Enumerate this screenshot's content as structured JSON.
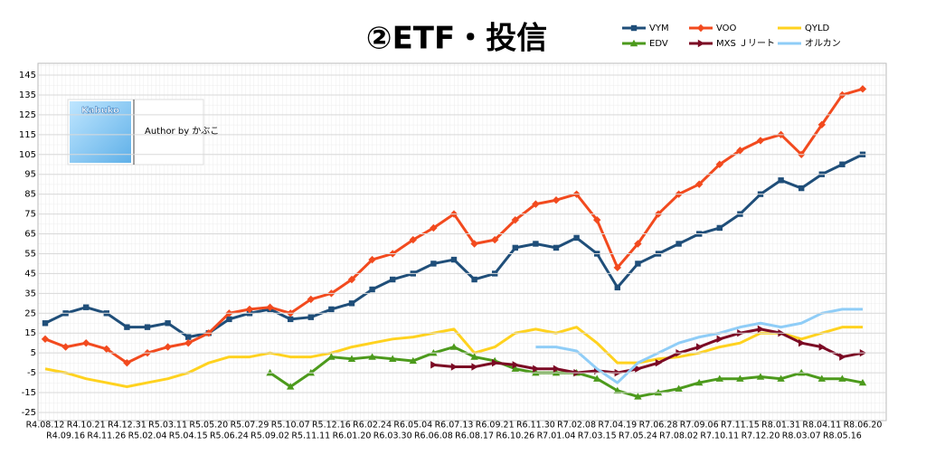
{
  "chart_data": {
    "type": "line",
    "title": "②ETF・投信",
    "annotations": [
      "Kabuko",
      "Author by かぶこ"
    ],
    "categories": [
      "R4.08.12",
      "R4.09.16",
      "R4.10.21",
      "R4.11.26",
      "R4.12.31",
      "R5.02.04",
      "R5.03.11",
      "R5.04.15",
      "R5.05.20",
      "R5.06.24",
      "R5.07.29",
      "R5.09.02",
      "R5.10.07",
      "R5.11.11",
      "R5.12.16",
      "R6.01.20",
      "R6.02.24",
      "R6.03.30",
      "R6.05.04",
      "R6.06.08",
      "R6.07.13",
      "R6.08.17",
      "R6.09.21",
      "R6.10.26",
      "R6.11.30",
      "R7.01.04",
      "R7.02.08",
      "R7.03.15",
      "R7.04.19",
      "R7.05.24",
      "R7.06.28",
      "R7.08.02",
      "R7.09.06",
      "R7.10.11",
      "R7.11.15",
      "R7.12.20",
      "R8.01.31",
      "R8.03.07",
      "R8.04.11",
      "R8.05.16",
      "R8.06.20"
    ],
    "series": [
      {
        "name": "VYM",
        "color": "#1f4e79",
        "marker": "square",
        "values": [
          20,
          25,
          28,
          25,
          18,
          18,
          20,
          13,
          15,
          22,
          25,
          27,
          22,
          23,
          27,
          30,
          37,
          42,
          45,
          50,
          52,
          42,
          45,
          58,
          60,
          58,
          63,
          55,
          38,
          50,
          55,
          60,
          65,
          68,
          75,
          85,
          92,
          88,
          95,
          100,
          105
        ]
      },
      {
        "name": "VOO",
        "color": "#f24a1e",
        "marker": "diamond",
        "values": [
          12,
          8,
          10,
          7,
          0,
          5,
          8,
          10,
          15,
          25,
          27,
          28,
          25,
          32,
          35,
          42,
          52,
          55,
          62,
          68,
          75,
          60,
          62,
          72,
          80,
          82,
          85,
          72,
          48,
          60,
          75,
          85,
          90,
          100,
          107,
          112,
          115,
          105,
          120,
          135,
          138
        ]
      },
      {
        "name": "QYLD",
        "color": "#ffd21f",
        "marker": "none",
        "values": [
          -3,
          -5,
          -8,
          -10,
          -12,
          -10,
          -8,
          -5,
          0,
          3,
          3,
          5,
          3,
          3,
          5,
          8,
          10,
          12,
          13,
          15,
          17,
          5,
          8,
          15,
          17,
          15,
          18,
          10,
          0,
          0,
          2,
          3,
          5,
          8,
          10,
          15,
          15,
          12,
          15,
          18,
          18
        ]
      },
      {
        "name": "EDV",
        "color": "#4c9a1c",
        "marker": "triangle",
        "values": [
          null,
          null,
          null,
          null,
          null,
          null,
          null,
          null,
          null,
          null,
          null,
          -5,
          -12,
          -5,
          3,
          2,
          3,
          2,
          1,
          5,
          8,
          3,
          1,
          -3,
          -5,
          -5,
          -5,
          -8,
          -14,
          -17,
          -15,
          -13,
          -10,
          -8,
          -8,
          -7,
          -8,
          -5,
          -8,
          -8,
          -10
        ]
      },
      {
        "name": "MXS Ｊリート",
        "color": "#7b0a24",
        "marker": "triangle-right",
        "values": [
          null,
          null,
          null,
          null,
          null,
          null,
          null,
          null,
          null,
          null,
          null,
          null,
          null,
          null,
          null,
          null,
          null,
          null,
          null,
          -1,
          -2,
          -2,
          0,
          -1,
          -3,
          -3,
          -5,
          -4,
          -5,
          -3,
          0,
          5,
          8,
          12,
          15,
          17,
          15,
          10,
          8,
          3,
          5
        ]
      },
      {
        "name": "オルカン",
        "color": "#8fcdf7",
        "marker": "none",
        "values": [
          null,
          null,
          null,
          null,
          null,
          null,
          null,
          null,
          null,
          null,
          null,
          null,
          null,
          null,
          null,
          null,
          null,
          null,
          null,
          null,
          null,
          null,
          null,
          null,
          8,
          8,
          6,
          -3,
          -10,
          0,
          5,
          10,
          13,
          15,
          18,
          20,
          18,
          20,
          25,
          27,
          27
        ]
      }
    ],
    "ylim": [
      -25,
      145
    ],
    "yticks": [
      -25,
      -15,
      -5,
      5,
      15,
      25,
      35,
      45,
      55,
      65,
      75,
      85,
      95,
      105,
      115,
      125,
      135,
      145
    ],
    "grid": true
  }
}
